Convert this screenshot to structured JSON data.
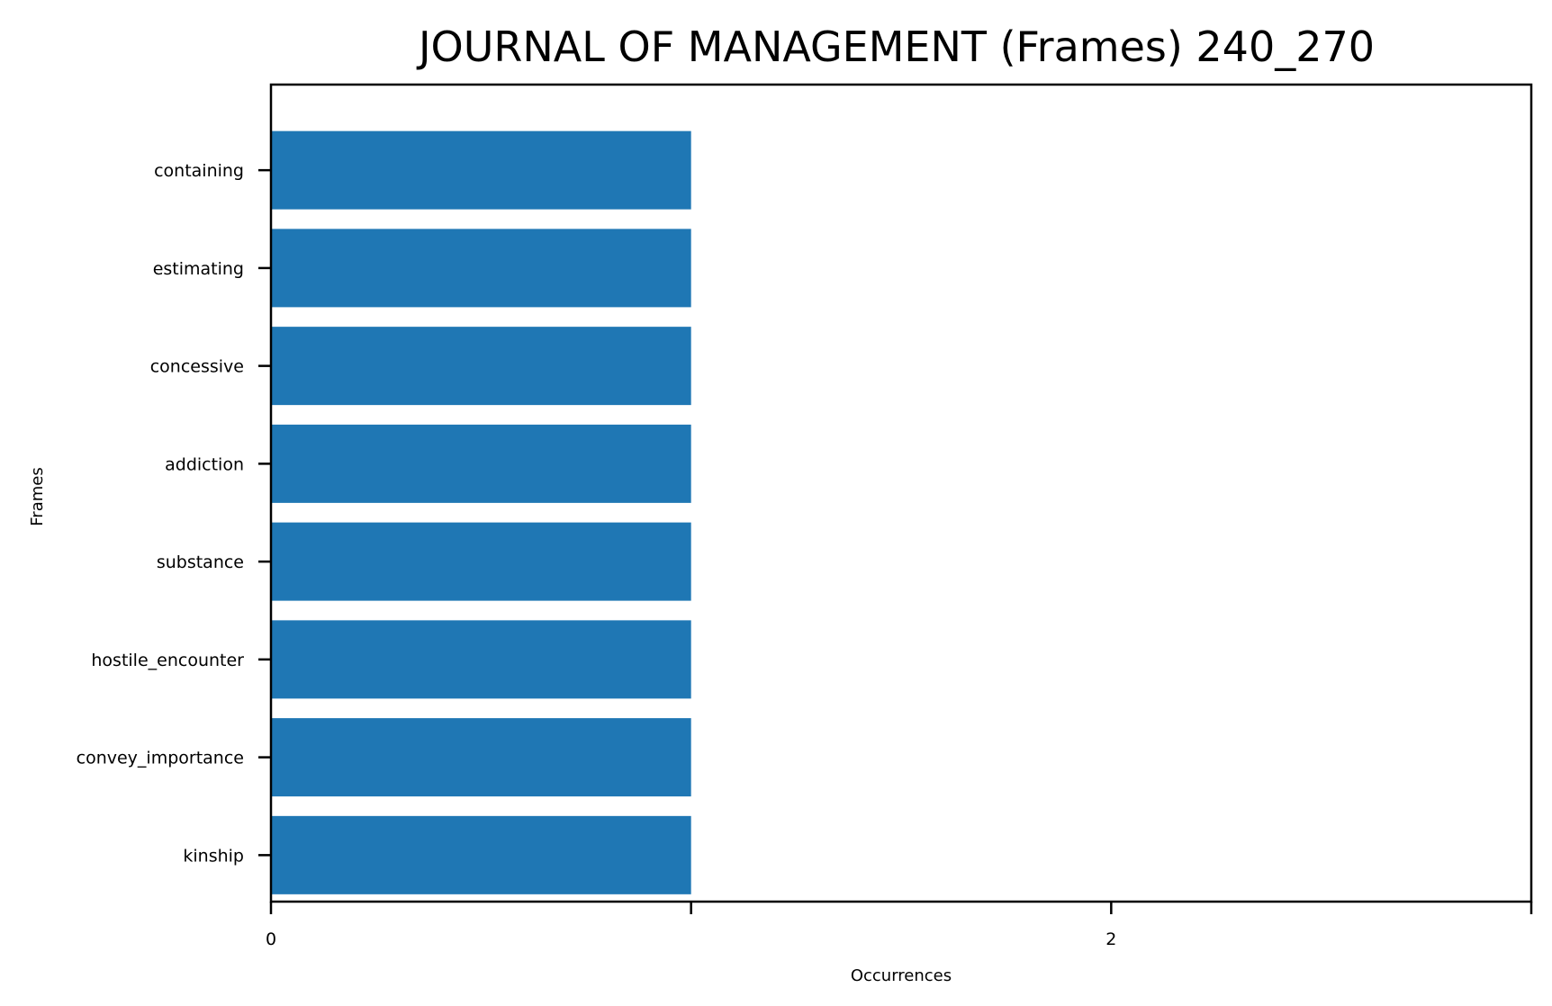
{
  "chart_data": {
    "type": "bar",
    "orientation": "horizontal",
    "title": "JOURNAL OF MANAGEMENT (Frames) 240_270",
    "xlabel": "Occurrences",
    "ylabel": "Frames",
    "categories": [
      "containing",
      "estimating",
      "concessive",
      "addiction",
      "substance",
      "hostile_encounter",
      "convey_importance",
      "kinship"
    ],
    "values": [
      1,
      1,
      1,
      1,
      1,
      1,
      1,
      1
    ],
    "xlim": [
      0,
      3
    ],
    "x_ticks": [
      0,
      1,
      2,
      3
    ],
    "x_tick_labels": [
      "0",
      "",
      "2",
      ""
    ],
    "grid": false,
    "bar_color": "#1f77b4"
  }
}
